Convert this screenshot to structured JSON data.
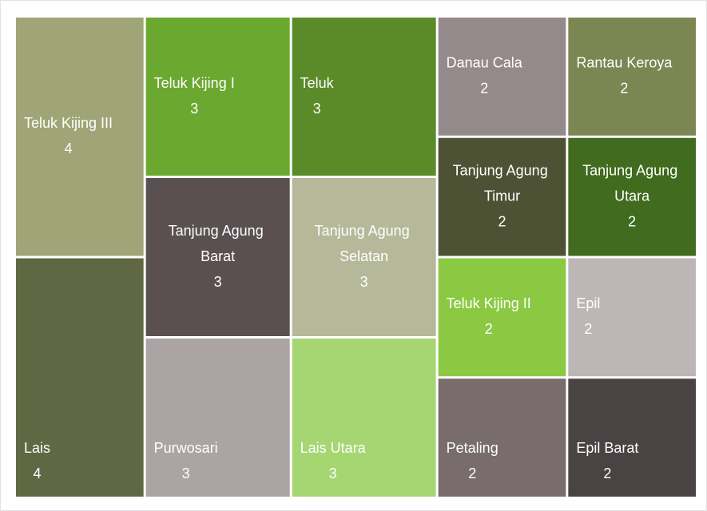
{
  "chart_data": {
    "type": "treemap",
    "categories": [
      "Teluk Kijing III",
      "Lais",
      "Teluk Kijing I",
      "Tanjung Agung Barat",
      "Purwosari",
      "Teluk",
      "Tanjung Agung Selatan",
      "Lais Utara",
      "Danau Cala",
      "Tanjung Agung Timur",
      "Teluk Kijing II",
      "Petaling",
      "Rantau Keroya",
      "Tanjung Agung Utara",
      "Epil",
      "Epil Barat"
    ],
    "values": [
      4,
      4,
      3,
      3,
      3,
      3,
      3,
      3,
      2,
      2,
      2,
      2,
      2,
      2,
      2,
      2
    ],
    "colors": [
      "#9fa577",
      "#606843",
      "#6ba82f",
      "#5a5052",
      "#aba3a4",
      "#5b8a28",
      "#b5b999",
      "#a6d672",
      "#958a8b",
      "#4d5234",
      "#8bc943",
      "#786c6d",
      "#7c8653",
      "#416b1e",
      "#bcb6b7",
      "#4a4344"
    ]
  }
}
